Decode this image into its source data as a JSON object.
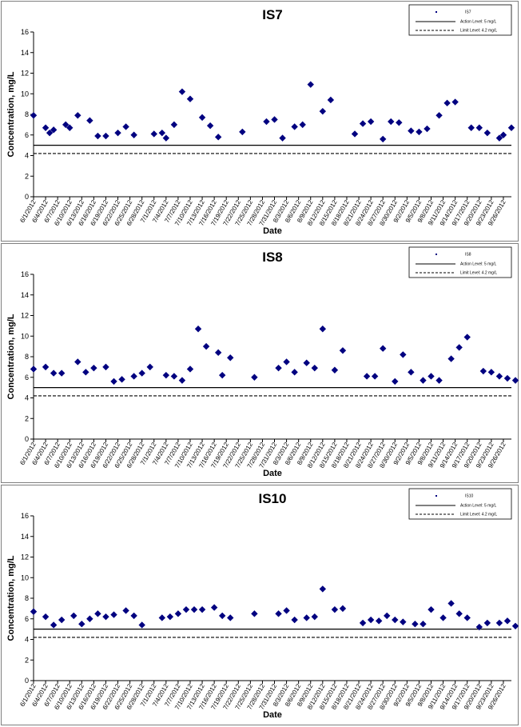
{
  "colors": {
    "marker": "#000080",
    "line": "#000000"
  },
  "x_labels": [
    "6/1/2012",
    "6/4/2012",
    "6/7/2012",
    "6/10/2012",
    "6/13/2012",
    "6/16/2012",
    "6/19/2012",
    "6/22/2012",
    "6/25/2012",
    "6/28/2012",
    "7/1/2012",
    "7/4/2012",
    "7/7/2012",
    "7/10/2012",
    "7/13/2012",
    "7/16/2012",
    "7/19/2012",
    "7/22/2012",
    "7/25/2012",
    "7/28/2012",
    "7/31/2012",
    "8/3/2012",
    "8/6/2012",
    "8/9/2012",
    "8/12/2012",
    "8/15/2012",
    "8/18/2012",
    "8/21/2012",
    "8/24/2012",
    "8/27/2012",
    "8/30/2012",
    "9/2/2012",
    "9/5/2012",
    "9/8/2012",
    "9/11/2012",
    "9/14/2012",
    "9/17/2012",
    "9/20/2012",
    "9/23/2012",
    "9/26/2012"
  ],
  "chart_data": [
    {
      "type": "scatter",
      "title": "IS7",
      "xlabel": "Date",
      "ylabel": "Concentration, mg/L",
      "ylim": [
        0,
        16
      ],
      "yticks": [
        0,
        2,
        4,
        6,
        8,
        10,
        12,
        14,
        16
      ],
      "xlim": [
        "6/1/2012",
        "9/28/2012"
      ],
      "legend_position": "top-right",
      "series": [
        {
          "name": "IS7",
          "marker": "diamond",
          "points": [
            [
              "6/1/2012",
              7.9
            ],
            [
              "6/4/2012",
              6.7
            ],
            [
              "6/5/2012",
              6.2
            ],
            [
              "6/6/2012",
              6.5
            ],
            [
              "6/9/2012",
              7.0
            ],
            [
              "6/10/2012",
              6.7
            ],
            [
              "6/12/2012",
              7.9
            ],
            [
              "6/15/2012",
              7.4
            ],
            [
              "6/17/2012",
              5.9
            ],
            [
              "6/19/2012",
              5.9
            ],
            [
              "6/22/2012",
              6.2
            ],
            [
              "6/24/2012",
              6.8
            ],
            [
              "6/26/2012",
              6.0
            ],
            [
              "7/1/2012",
              6.1
            ],
            [
              "7/3/2012",
              6.2
            ],
            [
              "7/4/2012",
              5.7
            ],
            [
              "7/6/2012",
              7.0
            ],
            [
              "7/8/2012",
              10.2
            ],
            [
              "7/10/2012",
              9.5
            ],
            [
              "7/13/2012",
              7.7
            ],
            [
              "7/15/2012",
              6.9
            ],
            [
              "7/17/2012",
              5.8
            ],
            [
              "7/23/2012",
              6.3
            ],
            [
              "7/29/2012",
              7.3
            ],
            [
              "7/31/2012",
              7.5
            ],
            [
              "8/2/2012",
              5.7
            ],
            [
              "8/5/2012",
              6.8
            ],
            [
              "8/7/2012",
              7.0
            ],
            [
              "8/9/2012",
              10.9
            ],
            [
              "8/12/2012",
              8.3
            ],
            [
              "8/14/2012",
              9.4
            ],
            [
              "8/20/2012",
              6.1
            ],
            [
              "8/22/2012",
              7.1
            ],
            [
              "8/24/2012",
              7.3
            ],
            [
              "8/27/2012",
              5.6
            ],
            [
              "8/29/2012",
              7.3
            ],
            [
              "8/31/2012",
              7.2
            ],
            [
              "9/3/2012",
              6.4
            ],
            [
              "9/5/2012",
              6.3
            ],
            [
              "9/7/2012",
              6.6
            ],
            [
              "9/10/2012",
              7.9
            ],
            [
              "9/12/2012",
              9.1
            ],
            [
              "9/14/2012",
              9.2
            ],
            [
              "9/18/2012",
              6.7
            ],
            [
              "9/20/2012",
              6.7
            ],
            [
              "9/22/2012",
              6.2
            ],
            [
              "9/25/2012",
              5.7
            ],
            [
              "9/26/2012",
              6.0
            ],
            [
              "9/28/2012",
              6.7
            ]
          ]
        },
        {
          "name": "Action Level: 5 mg/L",
          "style": "solid",
          "y": 5
        },
        {
          "name": "Limit Level: 4.2 mg/L",
          "style": "dashed",
          "y": 4.2
        }
      ]
    },
    {
      "type": "scatter",
      "title": "IS8",
      "xlabel": "Date",
      "ylabel": "Concentration, mg/L",
      "ylim": [
        0,
        16
      ],
      "yticks": [
        0,
        2,
        4,
        6,
        8,
        10,
        12,
        14,
        16
      ],
      "xlim": [
        "6/1/2012",
        "9/28/2012"
      ],
      "legend_position": "top-right",
      "series": [
        {
          "name": "IS8",
          "marker": "diamond",
          "points": [
            [
              "6/1/2012",
              6.8
            ],
            [
              "6/4/2012",
              7.0
            ],
            [
              "6/6/2012",
              6.4
            ],
            [
              "6/8/2012",
              6.4
            ],
            [
              "6/12/2012",
              7.5
            ],
            [
              "6/14/2012",
              6.5
            ],
            [
              "6/16/2012",
              6.9
            ],
            [
              "6/19/2012",
              7.0
            ],
            [
              "6/21/2012",
              5.6
            ],
            [
              "6/23/2012",
              5.8
            ],
            [
              "6/26/2012",
              6.1
            ],
            [
              "6/28/2012",
              6.4
            ],
            [
              "6/30/2012",
              7.0
            ],
            [
              "7/4/2012",
              6.2
            ],
            [
              "7/6/2012",
              6.1
            ],
            [
              "7/8/2012",
              5.7
            ],
            [
              "7/10/2012",
              6.8
            ],
            [
              "7/12/2012",
              10.7
            ],
            [
              "7/14/2012",
              9.0
            ],
            [
              "7/17/2012",
              8.4
            ],
            [
              "7/18/2012",
              6.2
            ],
            [
              "7/20/2012",
              7.9
            ],
            [
              "7/26/2012",
              6.0
            ],
            [
              "8/1/2012",
              6.9
            ],
            [
              "8/3/2012",
              7.5
            ],
            [
              "8/5/2012",
              6.5
            ],
            [
              "8/8/2012",
              7.4
            ],
            [
              "8/10/2012",
              6.9
            ],
            [
              "8/12/2012",
              10.7
            ],
            [
              "8/15/2012",
              6.7
            ],
            [
              "8/17/2012",
              8.6
            ],
            [
              "8/23/2012",
              6.1
            ],
            [
              "8/25/2012",
              6.1
            ],
            [
              "8/27/2012",
              8.8
            ],
            [
              "8/30/2012",
              5.6
            ],
            [
              "9/1/2012",
              8.2
            ],
            [
              "9/3/2012",
              6.5
            ],
            [
              "9/6/2012",
              5.7
            ],
            [
              "9/8/2012",
              6.1
            ],
            [
              "9/10/2012",
              5.7
            ],
            [
              "9/13/2012",
              7.8
            ],
            [
              "9/15/2012",
              8.9
            ],
            [
              "9/17/2012",
              9.9
            ],
            [
              "9/21/2012",
              6.6
            ],
            [
              "9/23/2012",
              6.5
            ],
            [
              "9/25/2012",
              6.1
            ],
            [
              "9/27/2012",
              5.9
            ],
            [
              "9/29/2012",
              5.7
            ],
            [
              "10/1/2012",
              6.5
            ]
          ]
        },
        {
          "name": "Action Level: 5 mg/L",
          "style": "solid",
          "y": 5
        },
        {
          "name": "Limit Level: 4.2 mg/L",
          "style": "dashed",
          "y": 4.2
        }
      ]
    },
    {
      "type": "scatter",
      "title": "IS10",
      "xlabel": "Date",
      "ylabel": "Concentration, mg/L",
      "ylim": [
        0,
        16
      ],
      "yticks": [
        0,
        2,
        4,
        6,
        8,
        10,
        12,
        14,
        16
      ],
      "xlim": [
        "6/1/2012",
        "9/28/2012"
      ],
      "legend_position": "top-right",
      "series": [
        {
          "name": "IS10",
          "marker": "diamond",
          "points": [
            [
              "6/1/2012",
              6.7
            ],
            [
              "6/4/2012",
              6.2
            ],
            [
              "6/6/2012",
              5.4
            ],
            [
              "6/8/2012",
              5.9
            ],
            [
              "6/11/2012",
              6.3
            ],
            [
              "6/13/2012",
              5.5
            ],
            [
              "6/15/2012",
              6.0
            ],
            [
              "6/17/2012",
              6.5
            ],
            [
              "6/19/2012",
              6.2
            ],
            [
              "6/21/2012",
              6.4
            ],
            [
              "6/24/2012",
              6.8
            ],
            [
              "6/26/2012",
              6.3
            ],
            [
              "6/28/2012",
              5.4
            ],
            [
              "7/3/2012",
              6.1
            ],
            [
              "7/5/2012",
              6.2
            ],
            [
              "7/7/2012",
              6.5
            ],
            [
              "7/9/2012",
              6.9
            ],
            [
              "7/11/2012",
              6.9
            ],
            [
              "7/13/2012",
              6.9
            ],
            [
              "7/16/2012",
              7.1
            ],
            [
              "7/18/2012",
              6.3
            ],
            [
              "7/20/2012",
              6.1
            ],
            [
              "7/26/2012",
              6.5
            ],
            [
              "8/1/2012",
              6.5
            ],
            [
              "8/3/2012",
              6.8
            ],
            [
              "8/5/2012",
              5.9
            ],
            [
              "8/8/2012",
              6.1
            ],
            [
              "8/10/2012",
              6.2
            ],
            [
              "8/12/2012",
              8.9
            ],
            [
              "8/15/2012",
              6.9
            ],
            [
              "8/17/2012",
              7.0
            ],
            [
              "8/22/2012",
              5.6
            ],
            [
              "8/24/2012",
              5.9
            ],
            [
              "8/26/2012",
              5.8
            ],
            [
              "8/28/2012",
              6.3
            ],
            [
              "8/30/2012",
              5.9
            ],
            [
              "9/1/2012",
              5.7
            ],
            [
              "9/4/2012",
              5.5
            ],
            [
              "9/6/2012",
              5.5
            ],
            [
              "9/8/2012",
              6.9
            ],
            [
              "9/11/2012",
              6.1
            ],
            [
              "9/13/2012",
              7.5
            ],
            [
              "9/15/2012",
              6.5
            ],
            [
              "9/17/2012",
              6.1
            ],
            [
              "9/20/2012",
              5.2
            ],
            [
              "9/22/2012",
              5.6
            ],
            [
              "9/25/2012",
              5.6
            ],
            [
              "9/27/2012",
              5.8
            ],
            [
              "9/29/2012",
              5.3
            ]
          ]
        },
        {
          "name": "Action Level: 5 mg/L",
          "style": "solid",
          "y": 5
        },
        {
          "name": "Limit Level: 4.2 mg/L",
          "style": "dashed",
          "y": 4.2
        }
      ]
    }
  ]
}
